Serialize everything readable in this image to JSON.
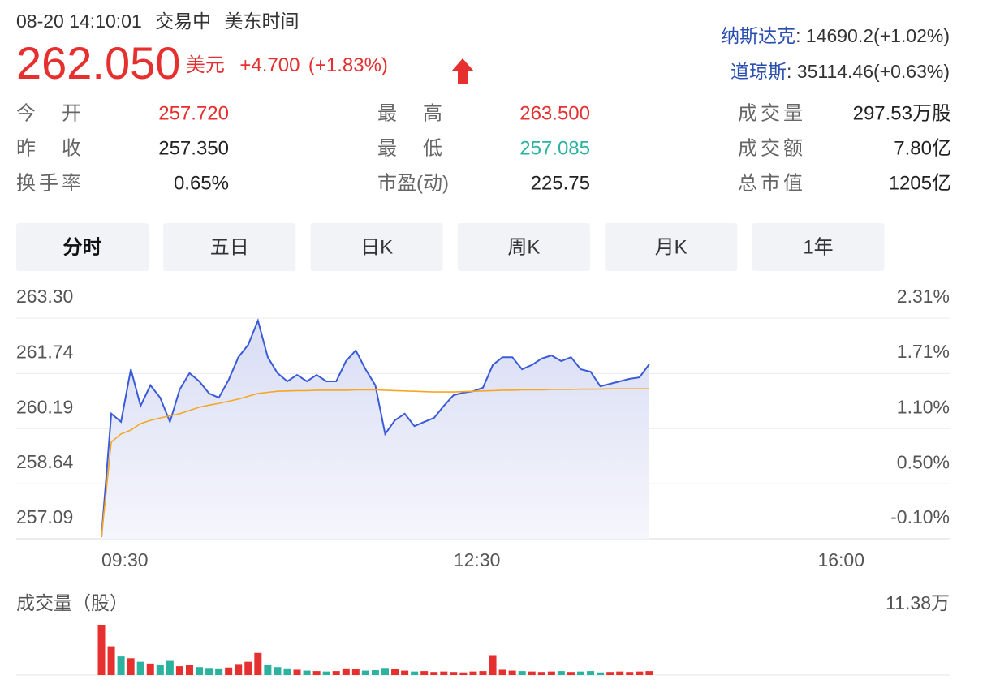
{
  "header": {
    "datetime": "08-20 14:10:01",
    "status": "交易中",
    "timezone": "美东时间"
  },
  "quote": {
    "price": "262.050",
    "currency": "美元",
    "change": "+4.700",
    "change_pct": "(+1.83%)"
  },
  "indices": [
    {
      "name": "纳斯达克",
      "value": ": 14690.2(+1.02%)"
    },
    {
      "name": "道琼斯",
      "value": ": 35114.46(+0.63%)"
    }
  ],
  "stats": [
    {
      "label": "今开",
      "value": "257.720"
    },
    {
      "label": "最高",
      "value": "263.500"
    },
    {
      "label": "成交量",
      "value": "297.53万股"
    },
    {
      "label": "昨收",
      "value": "257.350"
    },
    {
      "label": "最低",
      "value": "257.085"
    },
    {
      "label": "成交额",
      "value": "7.80亿"
    },
    {
      "label": "换手率",
      "value": "0.65%"
    },
    {
      "label": "市盈(动)",
      "value": "225.75"
    },
    {
      "label": "总市值",
      "value": "1205亿"
    }
  ],
  "tabs": {
    "items": [
      "分时",
      "五日",
      "日K",
      "周K",
      "月K",
      "1年"
    ],
    "active": 0
  },
  "price_chart": {
    "type": "line",
    "x": [
      "09:30",
      "09:35",
      "09:40",
      "09:45",
      "09:50",
      "09:55",
      "10:00",
      "10:05",
      "10:10",
      "10:15",
      "10:20",
      "10:25",
      "10:30",
      "10:35",
      "10:40",
      "10:45",
      "10:50",
      "10:55",
      "11:00",
      "11:05",
      "11:10",
      "11:15",
      "11:20",
      "11:25",
      "11:30",
      "11:35",
      "11:40",
      "11:45",
      "11:50",
      "11:55",
      "12:00",
      "12:05",
      "12:10",
      "12:15",
      "12:20",
      "12:25",
      "12:30",
      "12:35",
      "12:40",
      "12:45",
      "12:50",
      "12:55",
      "13:00",
      "13:05",
      "13:10",
      "13:15",
      "13:20",
      "13:25",
      "13:30",
      "13:35",
      "13:40",
      "13:45",
      "13:50",
      "13:55",
      "14:00",
      "14:05",
      "14:10"
    ],
    "xlim": [
      "09:30",
      "16:00"
    ],
    "xticks": [
      "09:30",
      "12:30",
      "16:00"
    ],
    "ylim": [
      257.09,
      263.3
    ],
    "yticks": [
      {
        "value": 263.3,
        "label": "263.30"
      },
      261.74,
      260.19,
      258.64,
      257.09
    ],
    "y2lim": [
      -0.1,
      2.31
    ],
    "y2ticks": [
      {
        "value": 2.31,
        "label": "2.31%"
      },
      {
        "value": 1.71,
        "label": "1.71%"
      },
      {
        "value": 1.1,
        "label": "1.10%"
      },
      {
        "value": 0.5,
        "label": "0.50%"
      },
      {
        "value": -0.1,
        "label": "-0.10%"
      }
    ],
    "grid": true,
    "series": [
      {
        "color": "#3a5bd9",
        "values": [
          257.14,
          260.61,
          260.38,
          261.86,
          260.83,
          261.41,
          261.06,
          260.38,
          261.29,
          261.75,
          261.52,
          261.18,
          261.06,
          261.56,
          262.2,
          262.55,
          263.23,
          262.2,
          261.75,
          261.52,
          261.7,
          261.52,
          261.7,
          261.52,
          261.52,
          262.09,
          262.39,
          261.86,
          261.41,
          260.04,
          260.42,
          260.61,
          260.26,
          260.38,
          260.49,
          260.83,
          261.13,
          261.2,
          261.24,
          261.34,
          261.98,
          262.2,
          262.2,
          261.86,
          261.98,
          262.16,
          262.25,
          262.09,
          262.2,
          261.86,
          261.79,
          261.38,
          261.45,
          261.52,
          261.59,
          261.63,
          262.0
        ]
      },
      {
        "color": "#f5a623",
        "values": [
          257.14,
          259.81,
          260.04,
          260.15,
          260.33,
          260.42,
          260.49,
          260.55,
          260.61,
          260.7,
          260.79,
          260.85,
          260.9,
          260.96,
          261.02,
          261.1,
          261.18,
          261.21,
          261.24,
          261.25,
          261.26,
          261.26,
          261.27,
          261.27,
          261.27,
          261.27,
          261.28,
          261.28,
          261.28,
          261.27,
          261.26,
          261.25,
          261.24,
          261.23,
          261.22,
          261.22,
          261.22,
          261.23,
          261.24,
          261.25,
          261.26,
          261.27,
          261.27,
          261.28,
          261.28,
          261.28,
          261.29,
          261.29,
          261.29,
          261.3,
          261.3,
          261.3,
          261.31,
          261.31,
          261.31,
          261.31,
          261.31
        ]
      }
    ]
  },
  "volume_chart": {
    "type": "bar",
    "title": "成交量（股）",
    "ylim": [
      0,
      11.38
    ],
    "yticks": [
      {
        "value": 11.38,
        "label": "11.38万"
      }
    ],
    "up_color": "#e5302f",
    "down_color": "#2bb3a0",
    "values": [
      11.38,
      6.5,
      4.2,
      3.8,
      3.0,
      2.6,
      2.4,
      3.2,
      2.0,
      2.2,
      1.8,
      1.6,
      1.5,
      1.7,
      2.5,
      3.0,
      5.0,
      2.4,
      1.8,
      1.5,
      1.2,
      1.0,
      0.9,
      0.8,
      0.9,
      1.5,
      1.4,
      1.0,
      1.1,
      1.6,
      1.3,
      1.0,
      0.8,
      0.9,
      0.7,
      0.8,
      0.7,
      0.6,
      0.8,
      0.9,
      4.5,
      1.2,
      1.0,
      0.9,
      0.8,
      0.7,
      0.8,
      0.9,
      0.7,
      0.8,
      0.9,
      0.6,
      0.7,
      0.8,
      0.7,
      0.8,
      0.9
    ]
  }
}
